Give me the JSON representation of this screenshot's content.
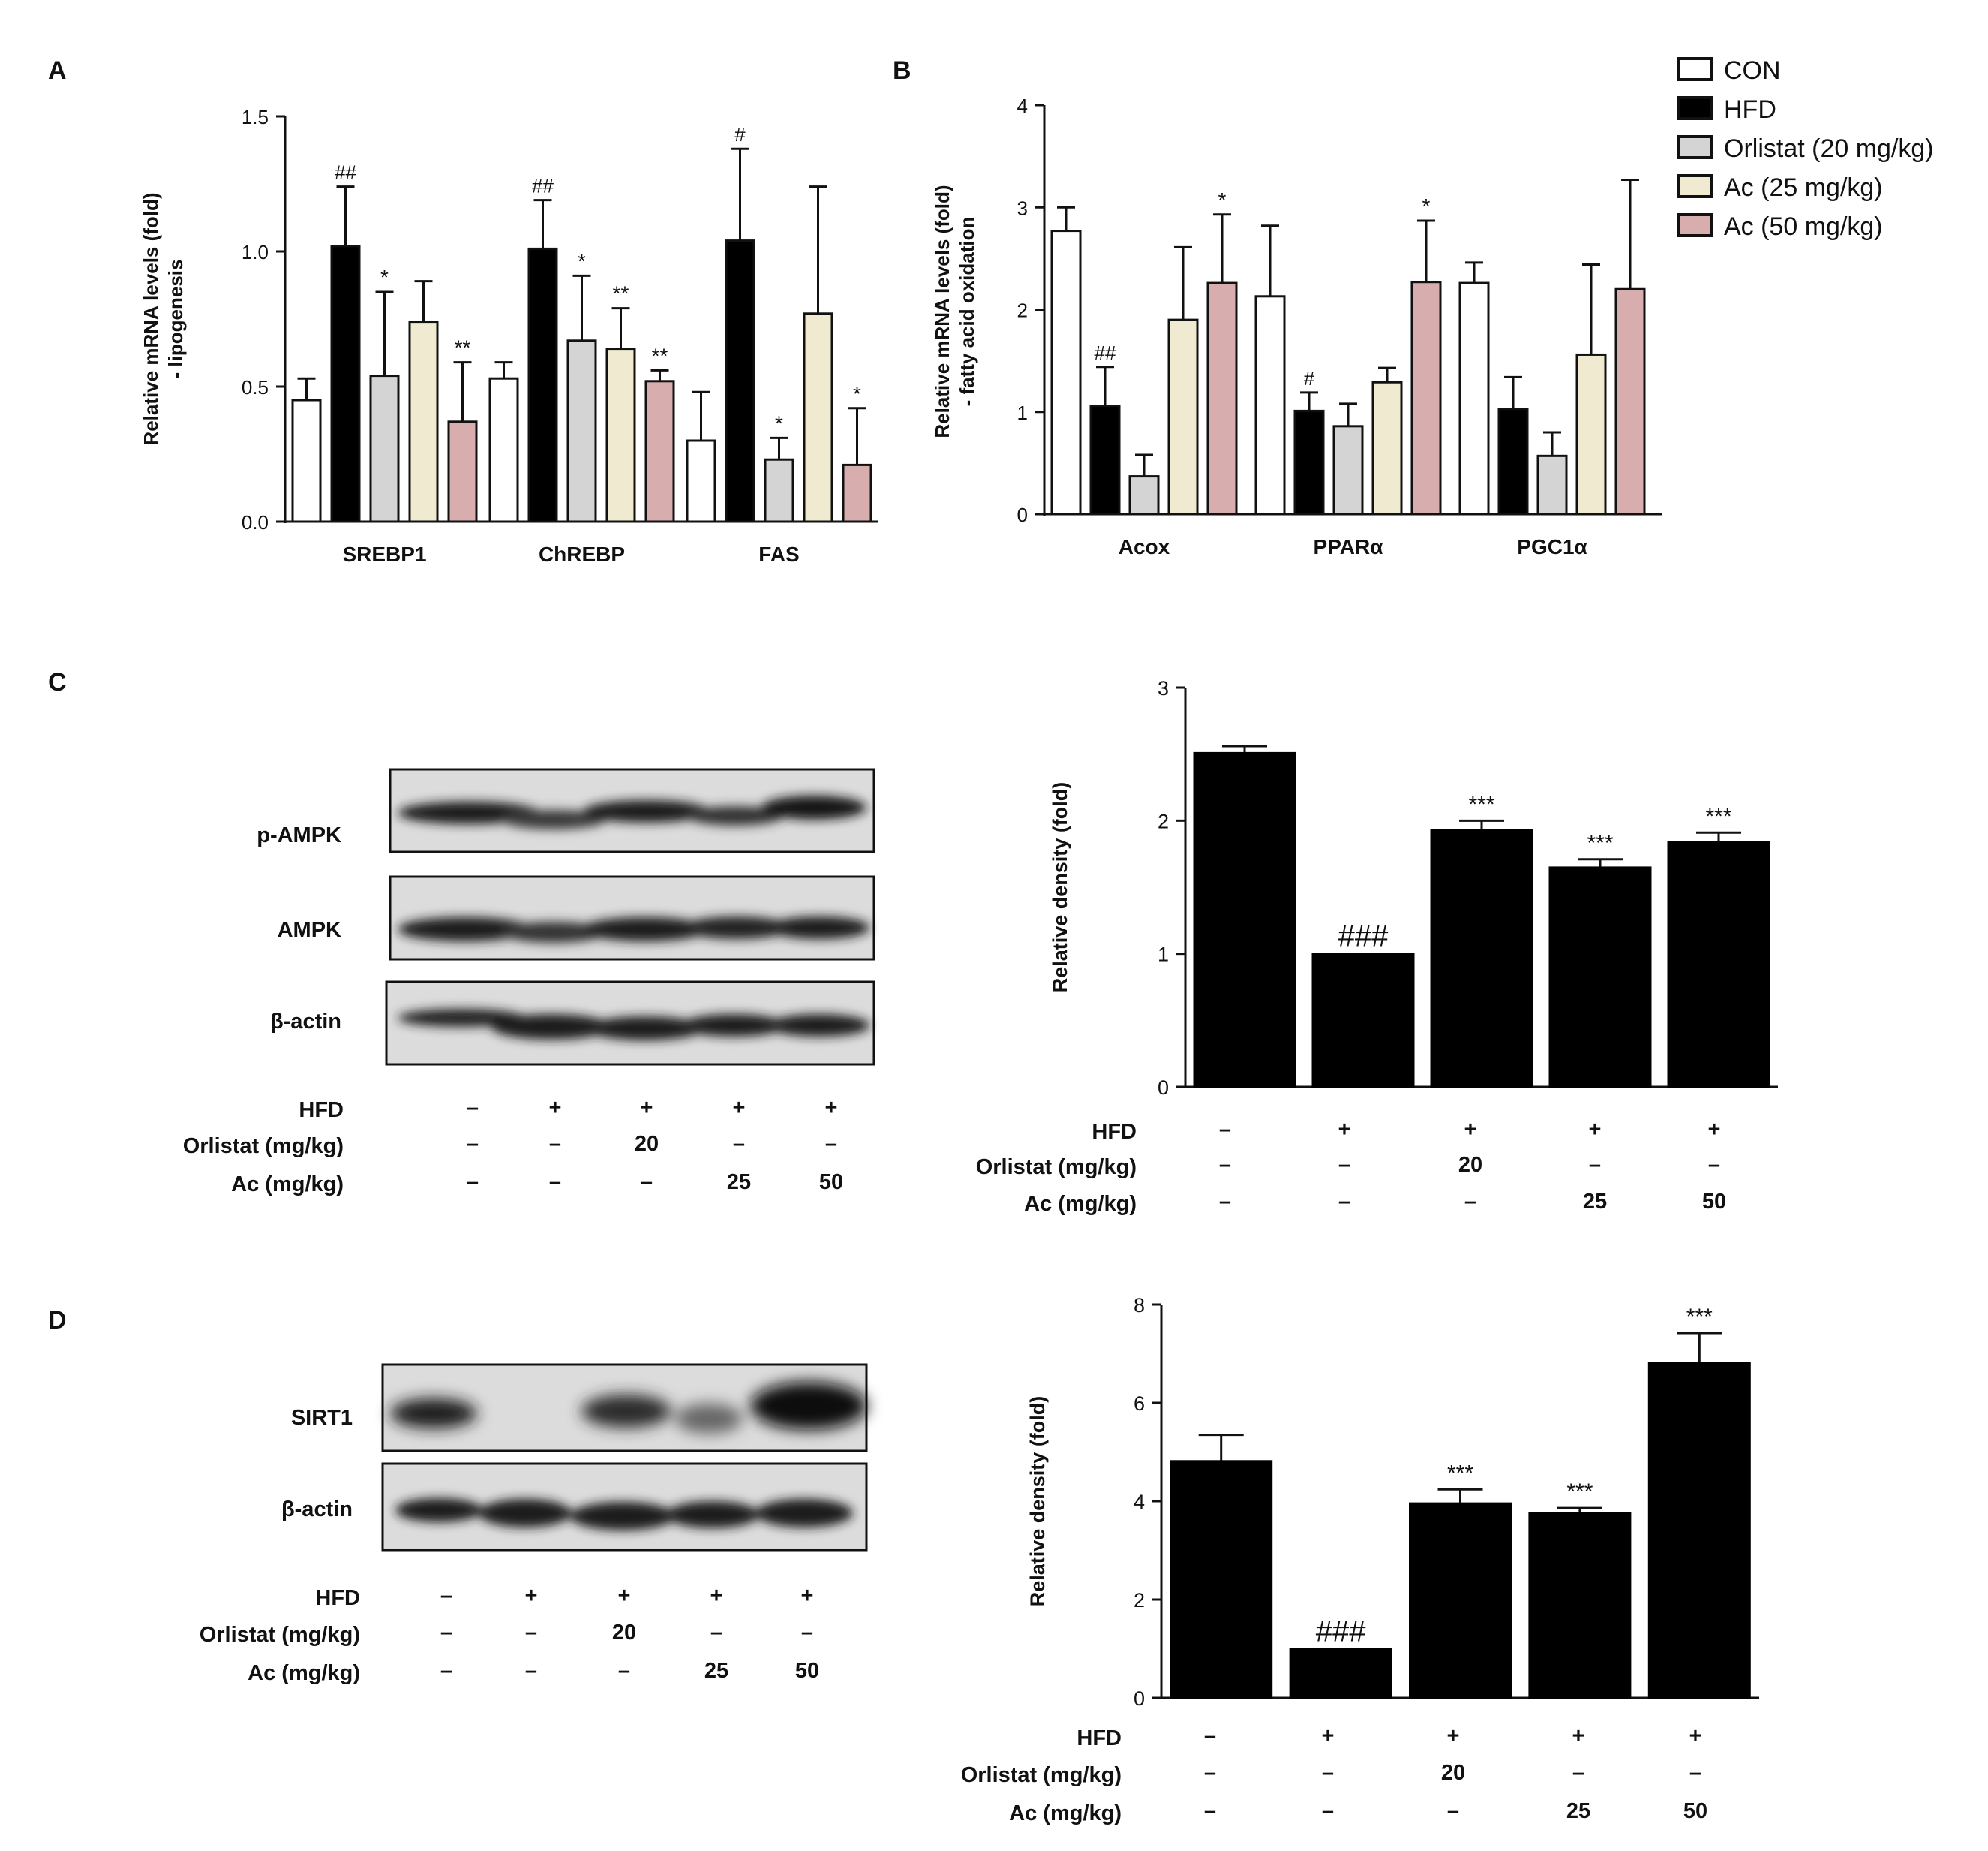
{
  "panel_labels": [
    "A",
    "B",
    "C",
    "D"
  ],
  "legend": [
    {
      "label": "CON",
      "color": "#ffffff"
    },
    {
      "label": "HFD",
      "color": "#000000"
    },
    {
      "label": "Orlistat (20 mg/kg)",
      "color": "#d4d4d4"
    },
    {
      "label": "Ac (25 mg/kg)",
      "color": "#efead0"
    },
    {
      "label": "Ac (50 mg/kg)",
      "color": "#d8adae"
    }
  ],
  "treatment_rows": {
    "labels": [
      "HFD",
      "Orlistat (mg/kg)",
      "Ac (mg/kg)"
    ],
    "values": [
      [
        "–",
        "+",
        "+",
        "+",
        "+"
      ],
      [
        "–",
        "–",
        "20",
        "–",
        "–"
      ],
      [
        "–",
        "–",
        "–",
        "25",
        "50"
      ]
    ]
  },
  "blots": {
    "C": [
      "p-AMPK",
      "AMPK",
      "β-actin"
    ],
    "D": [
      "SIRT1",
      "β-actin"
    ]
  },
  "chart_data": [
    {
      "id": "A",
      "type": "bar",
      "ylabel": [
        "Relative mRNA levels (fold)",
        "- lipogenesis"
      ],
      "ylim": [
        0,
        1.5
      ],
      "yticks": [
        0.0,
        0.5,
        1.0,
        1.5
      ],
      "ytick_labels": [
        "0.0",
        "0.5",
        "1.0",
        "1.5"
      ],
      "categories": [
        "SREBP1",
        "ChREBP",
        "FAS"
      ],
      "series": [
        {
          "name": "CON",
          "values": [
            0.45,
            0.53,
            0.3
          ],
          "errors": [
            0.08,
            0.06,
            0.18
          ],
          "annotations": [
            "",
            "",
            ""
          ]
        },
        {
          "name": "HFD",
          "values": [
            1.02,
            1.01,
            1.04
          ],
          "errors": [
            0.22,
            0.18,
            0.34
          ],
          "annotations": [
            "##",
            "##",
            "#"
          ]
        },
        {
          "name": "Orlistat (20 mg/kg)",
          "values": [
            0.54,
            0.67,
            0.23
          ],
          "errors": [
            0.31,
            0.24,
            0.08
          ],
          "annotations": [
            "*",
            "*",
            "*"
          ]
        },
        {
          "name": "Ac (25 mg/kg)",
          "values": [
            0.74,
            0.64,
            0.77
          ],
          "errors": [
            0.15,
            0.15,
            0.47
          ],
          "annotations": [
            "",
            "**",
            ""
          ]
        },
        {
          "name": "Ac (50 mg/kg)",
          "values": [
            0.37,
            0.52,
            0.21
          ],
          "errors": [
            0.22,
            0.04,
            0.21
          ],
          "annotations": [
            "**",
            "**",
            "*"
          ]
        }
      ]
    },
    {
      "id": "B",
      "type": "bar",
      "ylabel": [
        "Relative mRNA levels (fold)",
        "- fatty acid oxidation"
      ],
      "ylim": [
        0,
        4
      ],
      "yticks": [
        0,
        1,
        2,
        3,
        4
      ],
      "ytick_labels": [
        "0",
        "1",
        "2",
        "3",
        "4"
      ],
      "categories": [
        "Acox",
        "PPARα",
        "PGC1α"
      ],
      "series": [
        {
          "name": "CON",
          "values": [
            2.77,
            2.13,
            2.26
          ],
          "errors": [
            0.23,
            0.69,
            0.2
          ],
          "annotations": [
            "",
            "",
            ""
          ]
        },
        {
          "name": "HFD",
          "values": [
            1.06,
            1.01,
            1.03
          ],
          "errors": [
            0.38,
            0.18,
            0.31
          ],
          "annotations": [
            "##",
            "#",
            ""
          ]
        },
        {
          "name": "Orlistat (20 mg/kg)",
          "values": [
            0.37,
            0.86,
            0.57
          ],
          "errors": [
            0.21,
            0.22,
            0.23
          ],
          "annotations": [
            "",
            "",
            ""
          ]
        },
        {
          "name": "Ac (25 mg/kg)",
          "values": [
            1.9,
            1.29,
            1.56
          ],
          "errors": [
            0.71,
            0.14,
            0.88
          ],
          "annotations": [
            "",
            "",
            ""
          ]
        },
        {
          "name": "Ac (50 mg/kg)",
          "values": [
            2.26,
            2.27,
            2.2
          ],
          "errors": [
            0.67,
            0.6,
            1.07
          ],
          "annotations": [
            "*",
            "*",
            ""
          ]
        }
      ]
    },
    {
      "id": "C",
      "type": "bar",
      "ylabel": [
        "Relative density (fold)"
      ],
      "ylim": [
        0,
        3
      ],
      "yticks": [
        0,
        1,
        2,
        3
      ],
      "ytick_labels": [
        "0",
        "1",
        "2",
        "3"
      ],
      "values": [
        2.51,
        1.0,
        1.93,
        1.65,
        1.84
      ],
      "errors": [
        0.05,
        0.0,
        0.07,
        0.06,
        0.07
      ],
      "annotations": [
        "",
        "###",
        "***",
        "***",
        "***"
      ]
    },
    {
      "id": "D",
      "type": "bar",
      "ylabel": [
        "Relative density (fold)"
      ],
      "ylim": [
        0,
        8
      ],
      "yticks": [
        0,
        2,
        4,
        6,
        8
      ],
      "ytick_labels": [
        "0",
        "2",
        "4",
        "6",
        "8"
      ],
      "values": [
        4.82,
        1.0,
        3.96,
        3.76,
        6.82
      ],
      "errors": [
        0.53,
        0.0,
        0.28,
        0.1,
        0.6
      ],
      "annotations": [
        "",
        "###",
        "***",
        "***",
        "***"
      ]
    }
  ]
}
